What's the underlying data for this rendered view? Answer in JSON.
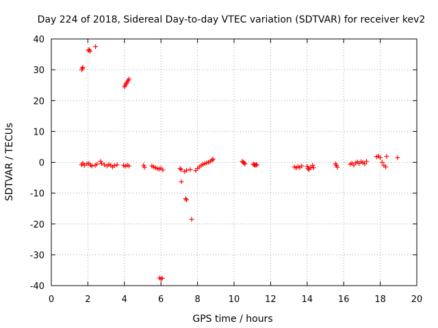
{
  "chart_data": {
    "type": "scatter",
    "title": "Day 224 of 2018, Sidereal Day-to-day VTEC variation (SDTVAR) for receiver kev2",
    "xlabel": "GPS time / hours",
    "ylabel": "SDTVAR / TECUs",
    "xlim": [
      0,
      20
    ],
    "ylim": [
      -40,
      40
    ],
    "x_ticks": [
      0,
      2,
      4,
      6,
      8,
      10,
      12,
      14,
      16,
      18,
      20
    ],
    "y_ticks": [
      -40,
      -30,
      -20,
      -10,
      0,
      10,
      20,
      30,
      40
    ],
    "x_tick_labels": [
      "0",
      "2",
      "4",
      "6",
      "8",
      "10",
      "12",
      "14",
      "16",
      "18",
      "20"
    ],
    "y_tick_labels": [
      "-40",
      "-30",
      "-20",
      "-10",
      "0",
      "10",
      "20",
      "30",
      "40"
    ],
    "grid": true,
    "marker": "plus",
    "color": "#ff0000",
    "series": [
      {
        "name": "SDTVAR",
        "x": [
          1.67,
          1.7,
          1.72,
          2.02,
          2.08,
          2.12,
          2.42,
          4.0,
          4.05,
          4.1,
          4.15,
          4.2,
          4.25,
          5.93,
          6.0,
          6.07,
          7.12,
          7.35,
          7.4,
          7.68,
          1.65,
          1.72,
          1.8,
          1.95,
          2.05,
          2.15,
          2.22,
          2.4,
          2.5,
          2.7,
          2.75,
          2.9,
          3.05,
          3.15,
          3.25,
          3.35,
          3.45,
          3.6,
          3.95,
          4.05,
          4.15,
          4.25,
          5.05,
          5.1,
          5.5,
          5.6,
          5.7,
          5.8,
          5.9,
          6.0,
          6.1,
          7.05,
          7.1,
          7.3,
          7.4,
          7.6,
          7.9,
          8.0,
          8.1,
          8.2,
          8.3,
          8.4,
          8.5,
          8.6,
          8.7,
          8.8,
          8.85,
          10.45,
          10.5,
          10.55,
          10.6,
          11.05,
          11.1,
          11.15,
          11.2,
          11.25,
          13.3,
          13.4,
          13.5,
          13.6,
          13.7,
          14.0,
          14.05,
          14.1,
          14.2,
          14.3,
          14.35,
          15.55,
          15.6,
          15.65,
          16.35,
          16.45,
          16.55,
          16.65,
          16.75,
          16.85,
          16.95,
          17.05,
          17.15,
          17.25,
          17.8,
          17.9,
          18.0,
          18.1,
          18.2,
          18.3,
          18.35,
          18.95
        ],
        "y": [
          30.0,
          30.5,
          30.8,
          36.3,
          36.5,
          36.0,
          37.5,
          24.5,
          25.0,
          25.5,
          26.0,
          26.5,
          27.0,
          -37.5,
          -37.8,
          -37.6,
          -6.3,
          -11.8,
          -12.2,
          -18.5,
          -0.8,
          -0.3,
          -1.0,
          -0.5,
          -0.4,
          -0.9,
          -1.2,
          -1.0,
          -0.6,
          0.3,
          -0.4,
          -0.8,
          -1.2,
          -0.7,
          -1.0,
          -1.5,
          -1.1,
          -0.8,
          -1.0,
          -1.3,
          -0.9,
          -1.2,
          -1.0,
          -1.6,
          -1.2,
          -1.5,
          -1.8,
          -2.0,
          -2.2,
          -1.9,
          -2.5,
          -2.0,
          -2.4,
          -3.0,
          -2.6,
          -2.4,
          -2.7,
          -2.0,
          -1.5,
          -1.0,
          -0.7,
          -0.4,
          -0.2,
          0.0,
          0.3,
          0.7,
          1.0,
          0.3,
          0.0,
          -0.3,
          -0.5,
          -0.6,
          -0.8,
          -1.0,
          -0.7,
          -0.9,
          -1.5,
          -1.8,
          -1.4,
          -1.7,
          -1.2,
          -1.3,
          -2.0,
          -2.4,
          -1.6,
          -1.0,
          -1.8,
          -0.5,
          -1.0,
          -1.6,
          -0.6,
          -0.3,
          -0.9,
          -0.2,
          0.1,
          -0.4,
          0.2,
          -0.1,
          -0.5,
          0.3,
          1.8,
          2.0,
          1.5,
          0.0,
          -1.0,
          -1.5,
          1.9,
          1.5
        ]
      }
    ]
  }
}
